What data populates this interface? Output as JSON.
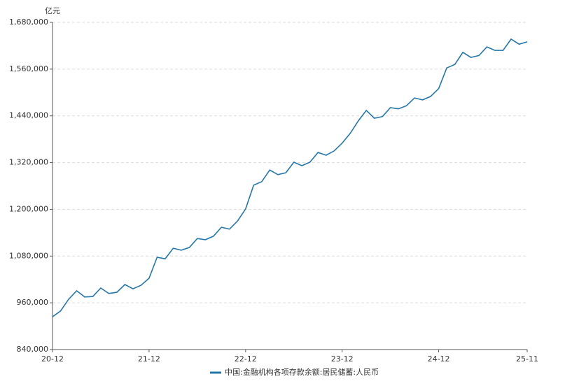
{
  "chart_data": {
    "type": "line",
    "y_label": "亿元",
    "categories": [
      "20-12",
      null,
      null,
      null,
      null,
      null,
      null,
      null,
      null,
      null,
      null,
      null,
      "21-12",
      null,
      null,
      null,
      null,
      null,
      null,
      null,
      null,
      null,
      null,
      null,
      "22-12",
      null,
      null,
      null,
      null,
      null,
      null,
      null,
      null,
      null,
      null,
      null,
      "23-12",
      null,
      null,
      null,
      null,
      null,
      null,
      null,
      null,
      null,
      null,
      null,
      "24-12",
      null,
      null,
      null,
      null,
      null,
      null,
      null,
      null,
      null,
      null,
      "25-11"
    ],
    "series": [
      {
        "name": "中国:金融机构各项存款余额:居民储蓄:人民币",
        "color": "#2577a8",
        "values": [
          924000,
          939000,
          969000,
          991000,
          975000,
          976000,
          998000,
          984000,
          987000,
          1007000,
          996000,
          1005000,
          1023000,
          1077000,
          1073000,
          1100000,
          1095000,
          1102000,
          1125000,
          1122000,
          1131000,
          1154000,
          1149000,
          1170000,
          1201000,
          1262000,
          1271000,
          1301000,
          1289000,
          1294000,
          1321000,
          1312000,
          1321000,
          1346000,
          1339000,
          1350000,
          1370000,
          1395000,
          1427000,
          1454000,
          1434000,
          1438000,
          1461000,
          1458000,
          1466000,
          1486000,
          1481000,
          1490000,
          1510000,
          1563000,
          1572000,
          1603000,
          1590000,
          1595000,
          1617000,
          1608000,
          1608000,
          1637000,
          1624000,
          1630000
        ]
      }
    ],
    "ylim": [
      840000,
      1680000
    ],
    "yticks": [
      {
        "value": 840000,
        "label": "840,000"
      },
      {
        "value": 960000,
        "label": "960,000"
      },
      {
        "value": 1080000,
        "label": "1,080,000"
      },
      {
        "value": 1200000,
        "label": "1,200,000"
      },
      {
        "value": 1320000,
        "label": "1,320,000"
      },
      {
        "value": 1440000,
        "label": "1,440,000"
      },
      {
        "value": 1560000,
        "label": "1,560,000"
      },
      {
        "value": 1680000,
        "label": "1,680,000"
      }
    ],
    "grid": true,
    "legend": "bottom"
  }
}
